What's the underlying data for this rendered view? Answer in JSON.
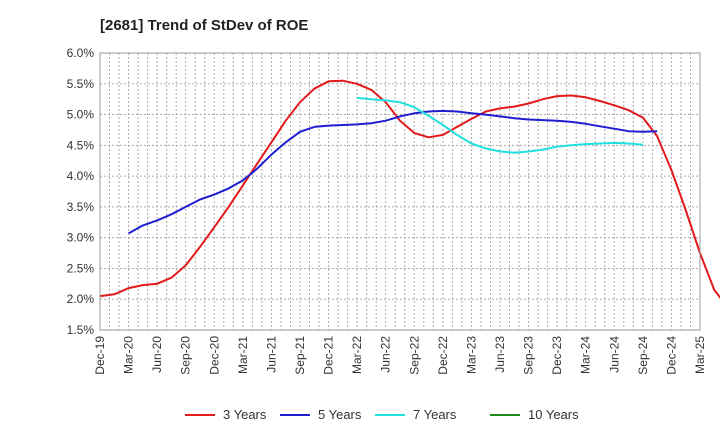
{
  "chart_data": {
    "type": "line",
    "title": "[2681]  Trend of StDev of ROE",
    "xlabel": "",
    "ylabel": "",
    "ylim": [
      1.5,
      6.0
    ],
    "y_ticks": [
      "1.5%",
      "2.0%",
      "2.5%",
      "3.0%",
      "3.5%",
      "4.0%",
      "4.5%",
      "5.0%",
      "5.5%",
      "6.0%"
    ],
    "y_tick_values": [
      1.5,
      2.0,
      2.5,
      3.0,
      3.5,
      4.0,
      4.5,
      5.0,
      5.5,
      6.0
    ],
    "x_ticks": [
      "Dec-19",
      "Mar-20",
      "Jun-20",
      "Sep-20",
      "Dec-20",
      "Mar-21",
      "Jun-21",
      "Sep-21",
      "Dec-21",
      "Mar-22",
      "Jun-22",
      "Sep-22",
      "Dec-22",
      "Mar-23",
      "Jun-23",
      "Sep-23",
      "Dec-23",
      "Mar-24",
      "Jun-24",
      "Sep-24",
      "Dec-24",
      "Mar-25"
    ],
    "grid": true,
    "legend_position": "bottom",
    "series": [
      {
        "name": "3 Years",
        "color": "#e31a1c",
        "values": [
          2.05,
          2.08,
          2.18,
          2.23,
          2.25,
          2.35,
          2.55,
          2.85,
          3.17,
          3.5,
          3.85,
          4.2,
          4.55,
          4.9,
          5.2,
          5.42,
          5.54,
          5.55,
          5.5,
          5.4,
          5.2,
          4.9,
          4.7,
          4.63,
          4.67,
          4.8,
          4.93,
          5.05,
          5.1,
          5.13,
          5.18,
          5.25,
          5.3,
          5.31,
          5.28,
          5.22,
          5.15,
          5.07,
          4.95,
          4.65,
          4.1,
          3.45,
          2.75,
          2.15,
          1.85
        ]
      },
      {
        "name": "5 Years",
        "color": "#1f1fd1",
        "values": [
          null,
          null,
          3.07,
          3.2,
          3.28,
          3.38,
          3.5,
          3.62,
          3.7,
          3.8,
          3.93,
          4.12,
          4.35,
          4.55,
          4.72,
          4.8,
          4.82,
          4.83,
          4.84,
          4.86,
          4.9,
          4.97,
          5.02,
          5.05,
          5.06,
          5.05,
          5.02,
          5.0,
          4.97,
          4.94,
          4.92,
          4.91,
          4.9,
          4.88,
          4.85,
          4.81,
          4.77,
          4.73,
          4.72,
          4.73
        ]
      },
      {
        "name": "7 Years",
        "color": "#22e0e0",
        "values": [
          null,
          null,
          null,
          null,
          null,
          null,
          null,
          null,
          null,
          null,
          null,
          null,
          null,
          null,
          null,
          null,
          null,
          null,
          5.27,
          5.25,
          5.23,
          5.2,
          5.12,
          4.98,
          4.83,
          4.67,
          4.53,
          4.45,
          4.4,
          4.38,
          4.4,
          4.43,
          4.48,
          4.5,
          4.52,
          4.53,
          4.54,
          4.53,
          4.51
        ]
      },
      {
        "name": "10 Years",
        "color": "#1a8a1a",
        "values": []
      }
    ]
  }
}
